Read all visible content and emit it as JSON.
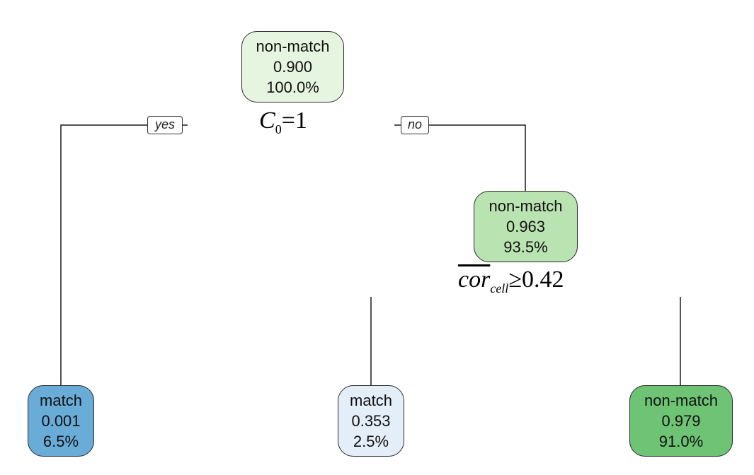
{
  "nodes": {
    "root": {
      "label": "non-match",
      "prob": "0.900",
      "pct": "100.0%",
      "fill": "#e6f5df"
    },
    "inner": {
      "label": "non-match",
      "prob": "0.963",
      "pct": "93.5%",
      "fill": "#b9e3b0"
    },
    "leaf_a": {
      "label": "match",
      "prob": "0.001",
      "pct": "6.5%",
      "fill": "#69acd7"
    },
    "leaf_b": {
      "label": "match",
      "prob": "0.353",
      "pct": "2.5%",
      "fill": "#e3eef8"
    },
    "leaf_c": {
      "label": "non-match",
      "prob": "0.979",
      "pct": "91.0%",
      "fill": "#6ec474"
    }
  },
  "branch_labels": {
    "yes": "yes",
    "no": "no"
  },
  "splits": {
    "root": {
      "var": "C",
      "sub": "0",
      "op": "=",
      "value": "1"
    },
    "inner": {
      "var": "cor",
      "sub": "cell",
      "op": "≥",
      "value": "0.42"
    }
  },
  "colors": {
    "line": "#1a1a1a",
    "border": "#2a2a2a"
  }
}
